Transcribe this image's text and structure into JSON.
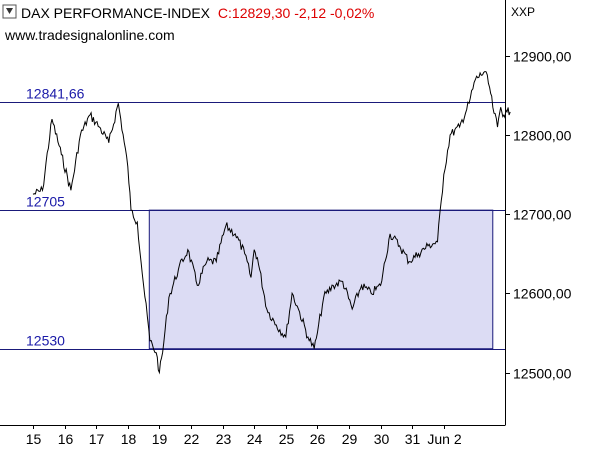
{
  "header": {
    "title": "DAX PERFORMANCE-INDEX",
    "quote": "C:12829,30 -2,12 -0,02%",
    "website": "www.tradesignalonline.com",
    "exchange": "XXP",
    "icon": "collapse-arrow-icon"
  },
  "colors": {
    "price_line": "#000000",
    "level_line": "#1a1a7a",
    "level_label": "#1a1aa8",
    "quote_red": "#dd0000",
    "range_fill": "#dcdcf4",
    "background": "#ffffff"
  },
  "chart_data": {
    "type": "line",
    "title": "DAX PERFORMANCE-INDEX",
    "xlabel": "",
    "ylabel": "",
    "x_tick_labels": [
      "15",
      "16",
      "17",
      "18",
      "19",
      "22",
      "23",
      "24",
      "25",
      "26",
      "29",
      "30",
      "31",
      "Jun 2"
    ],
    "y_ticks": [
      12500,
      12600,
      12700,
      12800,
      12900
    ],
    "y_tick_labels": [
      "12500,00",
      "12600,00",
      "12700,00",
      "12800,00",
      "12900,00"
    ],
    "ylim": [
      12430,
      12955
    ],
    "grid": false,
    "horizontal_levels": [
      {
        "value": 12841.66,
        "label": "12841,66"
      },
      {
        "value": 12705,
        "label": "12705"
      },
      {
        "value": 12530,
        "label": "12530"
      }
    ],
    "shaded_range": {
      "from_x": 3.68,
      "to_x": 14.55,
      "ymin": 12530,
      "ymax": 12705
    },
    "series": [
      {
        "x": [
          0.0,
          0.3,
          0.6,
          0.9,
          1.2,
          1.5,
          1.8,
          2.1,
          2.4,
          2.7,
          3.0,
          3.1,
          3.3,
          3.5,
          3.7,
          3.9,
          4.0,
          4.1,
          4.3,
          4.6,
          4.9,
          5.2,
          5.5,
          5.8,
          6.1,
          6.4,
          6.7,
          6.9,
          7.0,
          7.1,
          7.4,
          7.7,
          8.0,
          8.2,
          8.4,
          8.7,
          8.9,
          9.0,
          9.2,
          9.5,
          9.8,
          10.1,
          10.4,
          10.7,
          11.0,
          11.3,
          11.6,
          11.9,
          12.2,
          12.5,
          12.8,
          13.0,
          13.2,
          13.5,
          13.8,
          14.0,
          14.3,
          14.45,
          14.55,
          14.7,
          14.8,
          14.9,
          15.0,
          15.1
        ],
        "values": [
          12725,
          12730,
          12820,
          12775,
          12730,
          12800,
          12825,
          12810,
          12790,
          12840,
          12760,
          12705,
          12690,
          12610,
          12540,
          12525,
          12500,
          12525,
          12595,
          12630,
          12655,
          12610,
          12640,
          12640,
          12685,
          12675,
          12650,
          12620,
          12655,
          12645,
          12580,
          12560,
          12545,
          12600,
          12580,
          12545,
          12530,
          12550,
          12595,
          12610,
          12615,
          12580,
          12610,
          12600,
          12610,
          12675,
          12660,
          12640,
          12650,
          12660,
          12665,
          12750,
          12800,
          12810,
          12840,
          12870,
          12880,
          12860,
          12835,
          12810,
          12835,
          12825,
          12829,
          12829
        ]
      }
    ]
  }
}
